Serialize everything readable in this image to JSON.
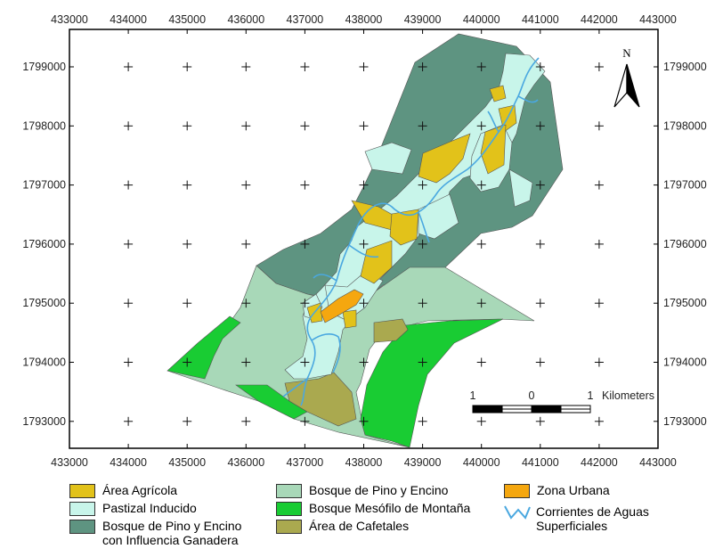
{
  "map": {
    "x_ticks": [
      "433000",
      "434000",
      "435000",
      "436000",
      "437000",
      "438000",
      "439000",
      "440000",
      "441000",
      "442000",
      "443000"
    ],
    "y_ticks": [
      "1799000",
      "1798000",
      "1797000",
      "1796000",
      "1795000",
      "1794000",
      "1793000"
    ],
    "north_label": "N",
    "scale_bar": {
      "labels": [
        "1",
        "0",
        "1"
      ],
      "unit": "Kilometers"
    }
  },
  "colors": {
    "agricola": "#e2c21a",
    "pastizal": "#c8f5ea",
    "pino_ganadera": "#5e9481",
    "pino_encino": "#a8d8b8",
    "mesofilo": "#19cc33",
    "cafetales": "#aaa94f",
    "urbana": "#f5a70f",
    "river": "#4aa8e0"
  },
  "legend": {
    "agricola": "Área Agrícola",
    "pastizal": "Pastizal Inducido",
    "pino_ganadera_1": "Bosque de Pino y Encino",
    "pino_ganadera_2": "con Influencia Ganadera",
    "pino_encino": "Bosque de Pino y Encino",
    "mesofilo": "Bosque Mesófilo de Montaña",
    "cafetales": "Área de Cafetales",
    "urbana": "Zona Urbana",
    "rios_1": "Corrientes de Aguas",
    "rios_2": "Superficiales"
  }
}
